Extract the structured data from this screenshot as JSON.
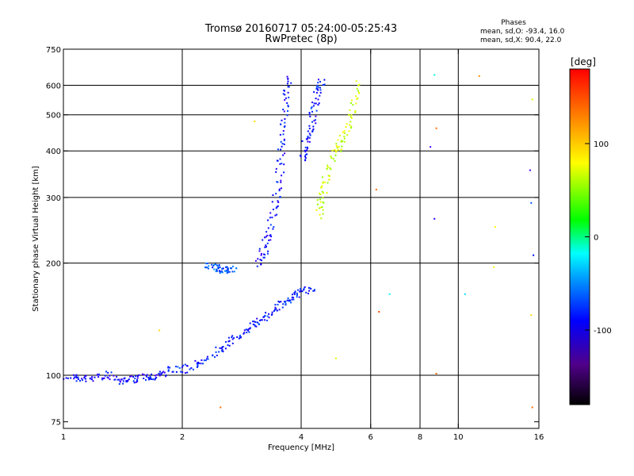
{
  "chart_data": {
    "type": "scatter",
    "title": "Tromsø 20160717 05:24:00-05:25:43",
    "subtitle": "RwPretec (8p)",
    "xlabel": "Frequency [MHz]",
    "ylabel": "Stationary phase Virtual Height [km]",
    "x_scale": "log",
    "y_scale": "log",
    "xlim": [
      1,
      16
    ],
    "ylim": [
      72,
      750
    ],
    "x_ticks": [
      {
        "value": 1,
        "label": "1"
      },
      {
        "value": 2,
        "label": "2"
      },
      {
        "value": 4,
        "label": "4"
      },
      {
        "value": 6,
        "label": "6"
      },
      {
        "value": 8,
        "label": "8"
      },
      {
        "value": 10,
        "label": "10"
      },
      {
        "value": 16,
        "label": "16"
      }
    ],
    "x_gridlines": [
      2,
      4,
      6,
      8,
      10
    ],
    "y_ticks": [
      {
        "value": 75,
        "label": "75"
      },
      {
        "value": 100,
        "label": "100"
      },
      {
        "value": 200,
        "label": "200"
      },
      {
        "value": 300,
        "label": "300"
      },
      {
        "value": 400,
        "label": "400"
      },
      {
        "value": 500,
        "label": "500"
      },
      {
        "value": 600,
        "label": "600"
      },
      {
        "value": 750,
        "label": "750"
      }
    ],
    "y_gridlines": [
      100,
      200,
      300,
      400,
      500,
      600
    ],
    "phase_info": {
      "header": "Phases",
      "o_line": "mean, sd,O: -93.4, 16.0",
      "x_line": "mean, sd,X:  90.4, 22.0"
    },
    "colorbar": {
      "label": "[deg]",
      "min": -180,
      "max": 180,
      "ticks": [
        {
          "value": 100,
          "label": "100"
        },
        {
          "value": 0,
          "label": "0"
        },
        {
          "value": -100,
          "label": "-100"
        }
      ]
    },
    "traces": [
      {
        "name": "low-echo",
        "points": [
          [
            1.02,
            100
          ],
          [
            1.1,
            98
          ],
          [
            1.2,
            99
          ],
          [
            1.3,
            101
          ],
          [
            1.4,
            97
          ],
          [
            1.5,
            98
          ],
          [
            1.6,
            99
          ],
          [
            1.7,
            100
          ],
          [
            1.8,
            101
          ]
        ],
        "phase": -105
      },
      {
        "name": "o-trace-E",
        "points": [
          [
            1.8,
            104
          ],
          [
            2.0,
            104
          ],
          [
            2.2,
            108
          ],
          [
            2.4,
            115
          ],
          [
            2.6,
            122
          ],
          [
            2.8,
            130
          ],
          [
            3.0,
            137
          ],
          [
            3.2,
            143
          ],
          [
            3.4,
            150
          ],
          [
            3.6,
            157
          ],
          [
            3.8,
            163
          ],
          [
            4.0,
            168
          ],
          [
            4.3,
            172
          ]
        ],
        "phase": -95
      },
      {
        "name": "o-trace-F",
        "points": [
          [
            3.1,
            200
          ],
          [
            3.2,
            215
          ],
          [
            3.3,
            240
          ],
          [
            3.4,
            280
          ],
          [
            3.5,
            330
          ],
          [
            3.55,
            400
          ],
          [
            3.6,
            470
          ],
          [
            3.65,
            560
          ],
          [
            3.7,
            640
          ]
        ],
        "phase": -100
      },
      {
        "name": "o-trace-F2",
        "points": [
          [
            4.0,
            380
          ],
          [
            4.1,
            420
          ],
          [
            4.2,
            460
          ],
          [
            4.3,
            520
          ],
          [
            4.4,
            580
          ],
          [
            4.5,
            630
          ]
        ],
        "phase": -100
      },
      {
        "name": "x-trace-F",
        "points": [
          [
            4.4,
            270
          ],
          [
            4.5,
            300
          ],
          [
            4.6,
            340
          ],
          [
            4.8,
            390
          ],
          [
            5.0,
            420
          ],
          [
            5.2,
            460
          ],
          [
            5.4,
            530
          ],
          [
            5.5,
            620
          ]
        ],
        "phase": 95
      },
      {
        "name": "es-patch",
        "points": [
          [
            2.3,
            197
          ],
          [
            2.4,
            195
          ],
          [
            2.5,
            193
          ],
          [
            2.6,
            192
          ],
          [
            2.7,
            195
          ]
        ],
        "phase": -80
      }
    ],
    "scatter_points": [
      {
        "x": 8.7,
        "y": 640,
        "phase": -20
      },
      {
        "x": 11.3,
        "y": 635,
        "phase": 140
      },
      {
        "x": 8.8,
        "y": 460,
        "phase": 150
      },
      {
        "x": 8.5,
        "y": 410,
        "phase": -120
      },
      {
        "x": 6.2,
        "y": 315,
        "phase": 150
      },
      {
        "x": 8.7,
        "y": 263,
        "phase": -110
      },
      {
        "x": 15.3,
        "y": 290,
        "phase": -80
      },
      {
        "x": 15.5,
        "y": 210,
        "phase": -100
      },
      {
        "x": 15.2,
        "y": 355,
        "phase": -120
      },
      {
        "x": 15.4,
        "y": 550,
        "phase": 100
      },
      {
        "x": 12.4,
        "y": 250,
        "phase": 110
      },
      {
        "x": 12.3,
        "y": 195,
        "phase": 110
      },
      {
        "x": 10.4,
        "y": 165,
        "phase": -40
      },
      {
        "x": 6.7,
        "y": 165,
        "phase": -30
      },
      {
        "x": 6.3,
        "y": 148,
        "phase": 160
      },
      {
        "x": 15.3,
        "y": 145,
        "phase": 120
      },
      {
        "x": 8.8,
        "y": 101,
        "phase": 150
      },
      {
        "x": 15.4,
        "y": 82,
        "phase": 150
      },
      {
        "x": 4.9,
        "y": 111,
        "phase": 100
      },
      {
        "x": 3.05,
        "y": 480,
        "phase": 120
      },
      {
        "x": 1.75,
        "y": 132,
        "phase": 120
      },
      {
        "x": 2.5,
        "y": 82,
        "phase": 150
      }
    ]
  }
}
